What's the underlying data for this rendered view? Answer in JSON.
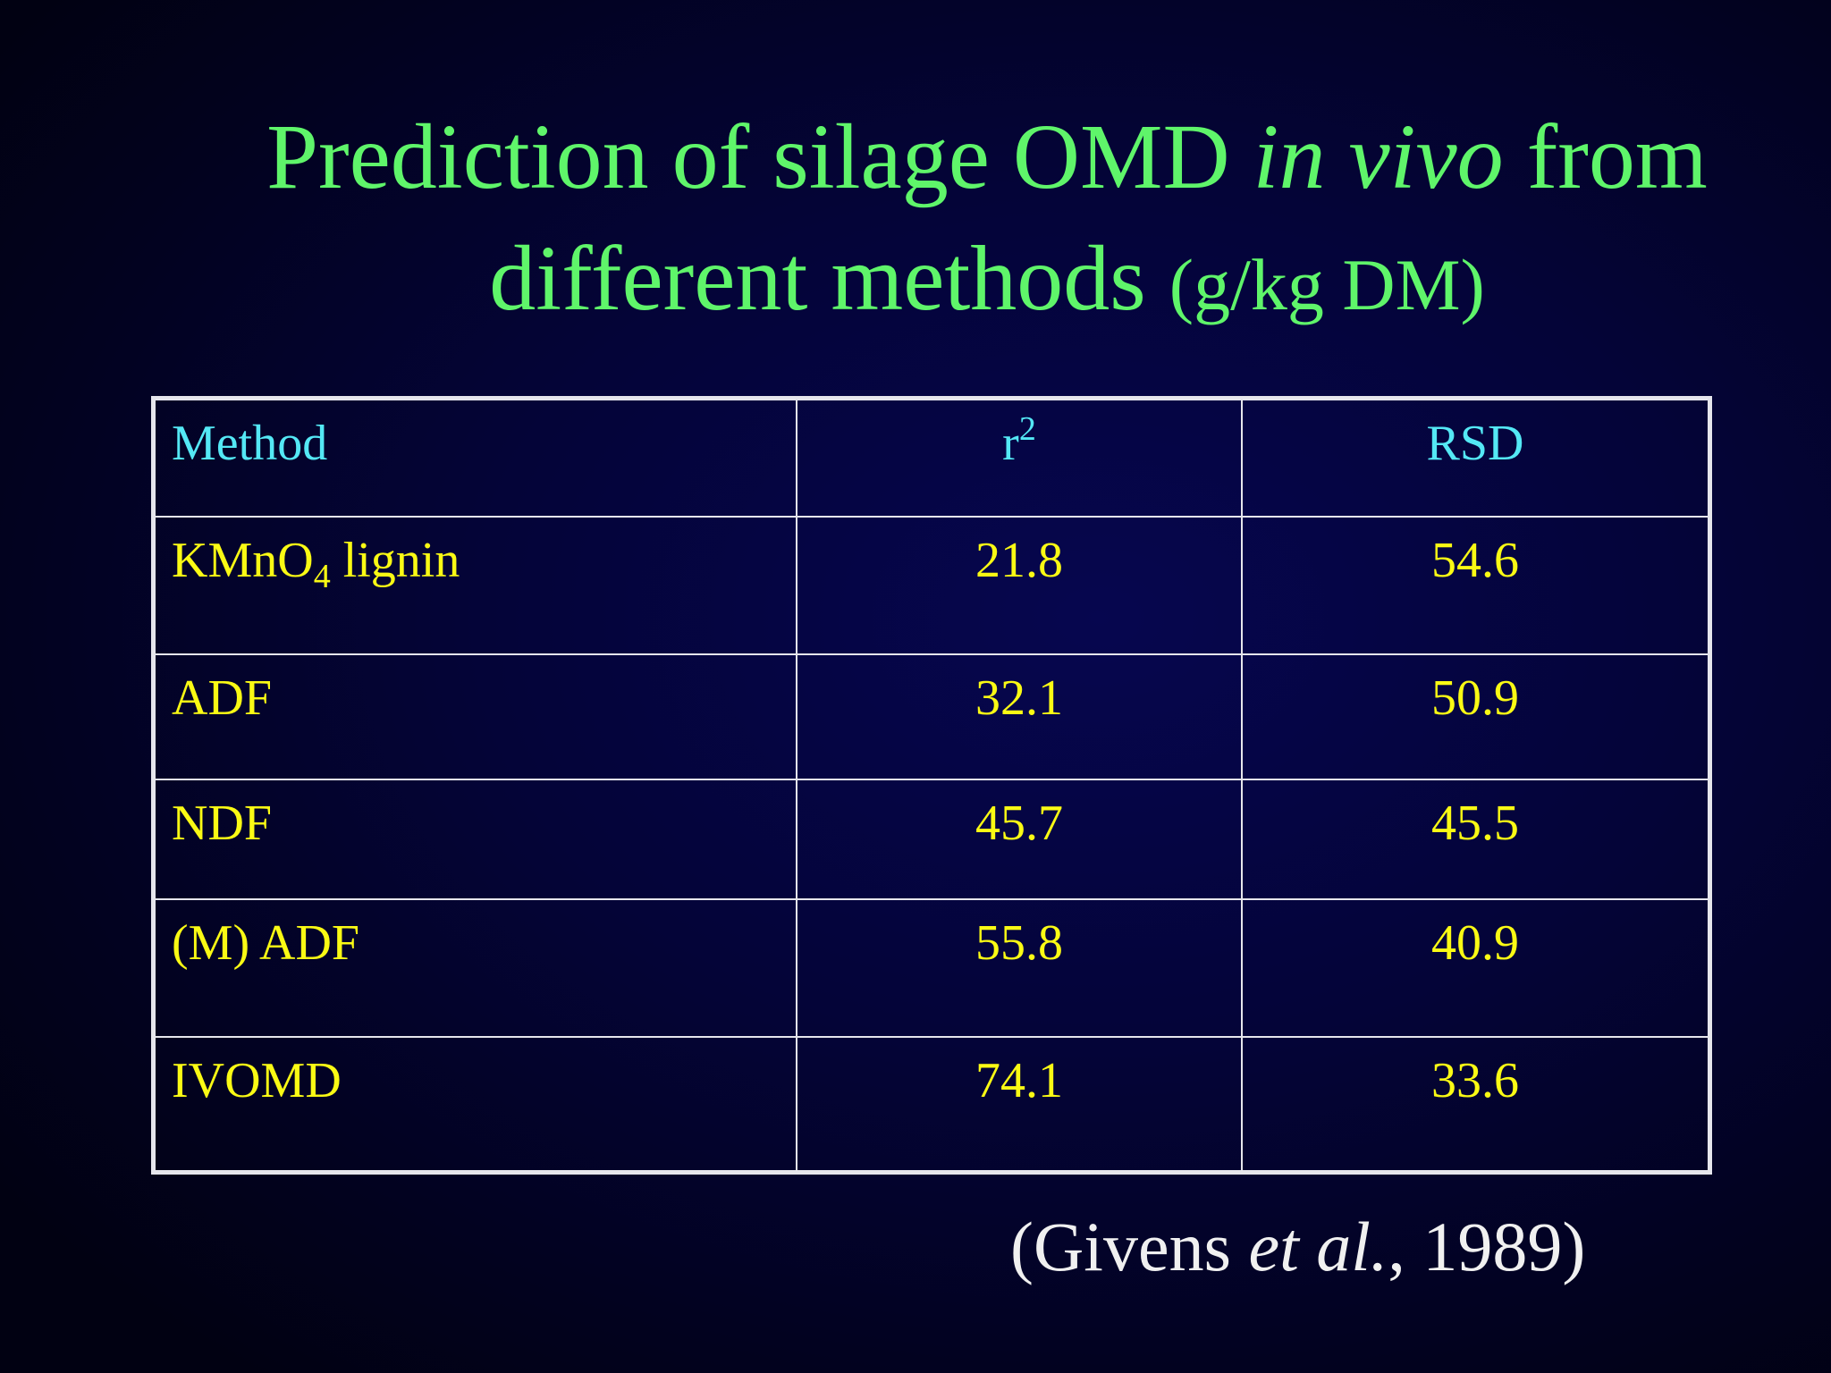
{
  "slide": {
    "title": {
      "part1": "Prediction of silage OMD ",
      "italic": "in vivo",
      "part2": " from",
      "line2": "different methods ",
      "unit": "(g/kg DM)"
    },
    "table": {
      "headers": {
        "method": "Method",
        "r2_base": "r",
        "r2_sup": "2",
        "rsd": "RSD"
      },
      "rows": [
        {
          "method": "KMnO",
          "method_sub": "4",
          "method_suffix": " lignin",
          "r2": "21.8",
          "rsd": "54.6"
        },
        {
          "method": "ADF",
          "r2": "32.1",
          "rsd": "50.9"
        },
        {
          "method": "NDF",
          "r2": "45.7",
          "rsd": "45.5"
        },
        {
          "method": "(M) ADF",
          "r2": "55.8",
          "rsd": "40.9"
        },
        {
          "method": "IVOMD",
          "r2": "74.1",
          "rsd": "33.6"
        }
      ]
    },
    "citation": {
      "open": "(Givens ",
      "italic": "et al.",
      "close": ", 1989)"
    },
    "colors": {
      "title": "#5ff56a",
      "header_text": "#54e8f5",
      "cell_text": "#fafa14",
      "citation": "#f0f0f0",
      "background": "#040438"
    }
  }
}
